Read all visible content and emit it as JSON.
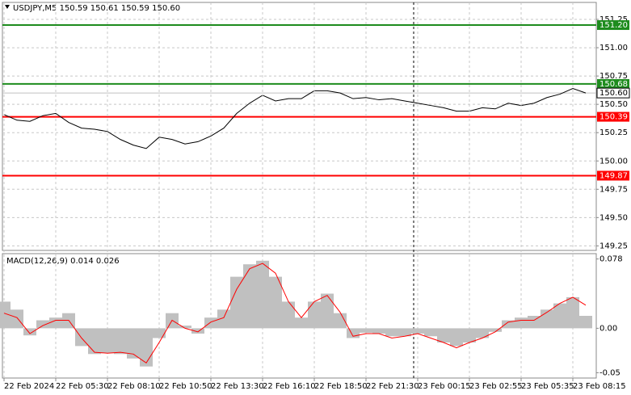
{
  "chart_data": [
    {
      "type": "line",
      "title": "USDJPY,M5  150.59 150.61 150.59 150.60",
      "ylim": [
        149.21,
        151.4
      ],
      "yticks": [
        151.25,
        {
          "value": 151,
          "label": "151.00"
        },
        150.75,
        {
          "value": 150.5,
          "label": "150.50"
        },
        150.25,
        {
          "value": 150,
          "label": "150.00"
        },
        149.75,
        {
          "value": 149.5,
          "label": "149.50"
        },
        149.25
      ],
      "grid": true,
      "color": "#000000",
      "values": [
        150.41,
        150.36,
        150.35,
        150.4,
        150.42,
        150.34,
        150.29,
        150.28,
        150.26,
        150.19,
        150.14,
        150.11,
        150.21,
        150.19,
        150.15,
        150.17,
        150.22,
        150.29,
        150.42,
        150.51,
        150.58,
        150.53,
        150.55,
        150.55,
        150.62,
        150.62,
        150.6,
        150.55,
        150.56,
        150.54,
        150.55,
        150.53,
        150.51,
        150.49,
        150.47,
        150.44,
        150.44,
        150.47,
        150.46,
        150.51,
        150.49,
        150.51,
        150.56,
        150.59,
        150.64,
        150.6
      ],
      "levels": [
        {
          "value": 151.2,
          "label": "151.20",
          "color": "#1e8c1e"
        },
        {
          "value": 150.68,
          "label": "150.68",
          "color": "#1e8c1e"
        },
        {
          "value": 150.39,
          "label": "150.39",
          "color": "#ff0000"
        },
        {
          "value": 149.87,
          "label": "149.87",
          "color": "#ff0000"
        }
      ],
      "current": {
        "value": 150.6,
        "label": "150.60",
        "color": "#c0c0c0"
      }
    },
    {
      "type": "bar",
      "title": "MACD(12,26,9) 0.014 0.026",
      "categories": [
        "22 Feb 2024",
        null,
        null,
        null,
        "22 Feb 05:30",
        null,
        null,
        null,
        "22 Feb 08:10",
        null,
        null,
        null,
        "22 Feb 10:50",
        null,
        null,
        null,
        "22 Feb 13:30",
        null,
        null,
        null,
        "22 Feb 16:10",
        null,
        null,
        null,
        "22 Feb 18:50",
        null,
        null,
        null,
        "22 Feb 21:30",
        null,
        null,
        null,
        "23 Feb 00:15",
        null,
        null,
        null,
        "23 Feb 02:55",
        null,
        null,
        null,
        "23 Feb 05:35",
        null,
        null,
        null,
        "23 Feb 08:15",
        null
      ],
      "values": [
        0.03,
        0.021,
        -0.008,
        0.009,
        0.012,
        0.017,
        -0.02,
        -0.029,
        -0.028,
        -0.029,
        -0.034,
        -0.043,
        -0.011,
        0.017,
        0.003,
        -0.006,
        0.012,
        0.021,
        0.058,
        0.072,
        0.076,
        0.058,
        0.03,
        0.012,
        0.03,
        0.039,
        0.017,
        -0.011,
        -0.005,
        -0.006,
        -0.009,
        -0.009,
        -0.006,
        -0.009,
        -0.016,
        -0.02,
        -0.016,
        -0.011,
        -0.004,
        0.009,
        0.012,
        0.014,
        0.021,
        0.028,
        0.035,
        0.014
      ],
      "color": "#c0c0c0",
      "signal": {
        "color": "#ff0000",
        "values": [
          0.017,
          0.012,
          -0.006,
          0.003,
          0.009,
          0.009,
          -0.011,
          -0.027,
          -0.028,
          -0.027,
          -0.029,
          -0.039,
          -0.016,
          0.009,
          0.0,
          -0.004,
          0.007,
          0.012,
          0.044,
          0.067,
          0.073,
          0.062,
          0.03,
          0.012,
          0.03,
          0.037,
          0.018,
          -0.009,
          -0.006,
          -0.006,
          -0.011,
          -0.009,
          -0.006,
          -0.011,
          -0.016,
          -0.022,
          -0.016,
          -0.011,
          -0.004,
          0.007,
          0.009,
          0.009,
          0.018,
          0.028,
          0.035,
          0.026
        ]
      },
      "ylim": [
        -0.056,
        0.084
      ],
      "yticks": [
        0.078,
        {
          "value": 0,
          "label": "0.00"
        },
        -0.05
      ]
    }
  ]
}
